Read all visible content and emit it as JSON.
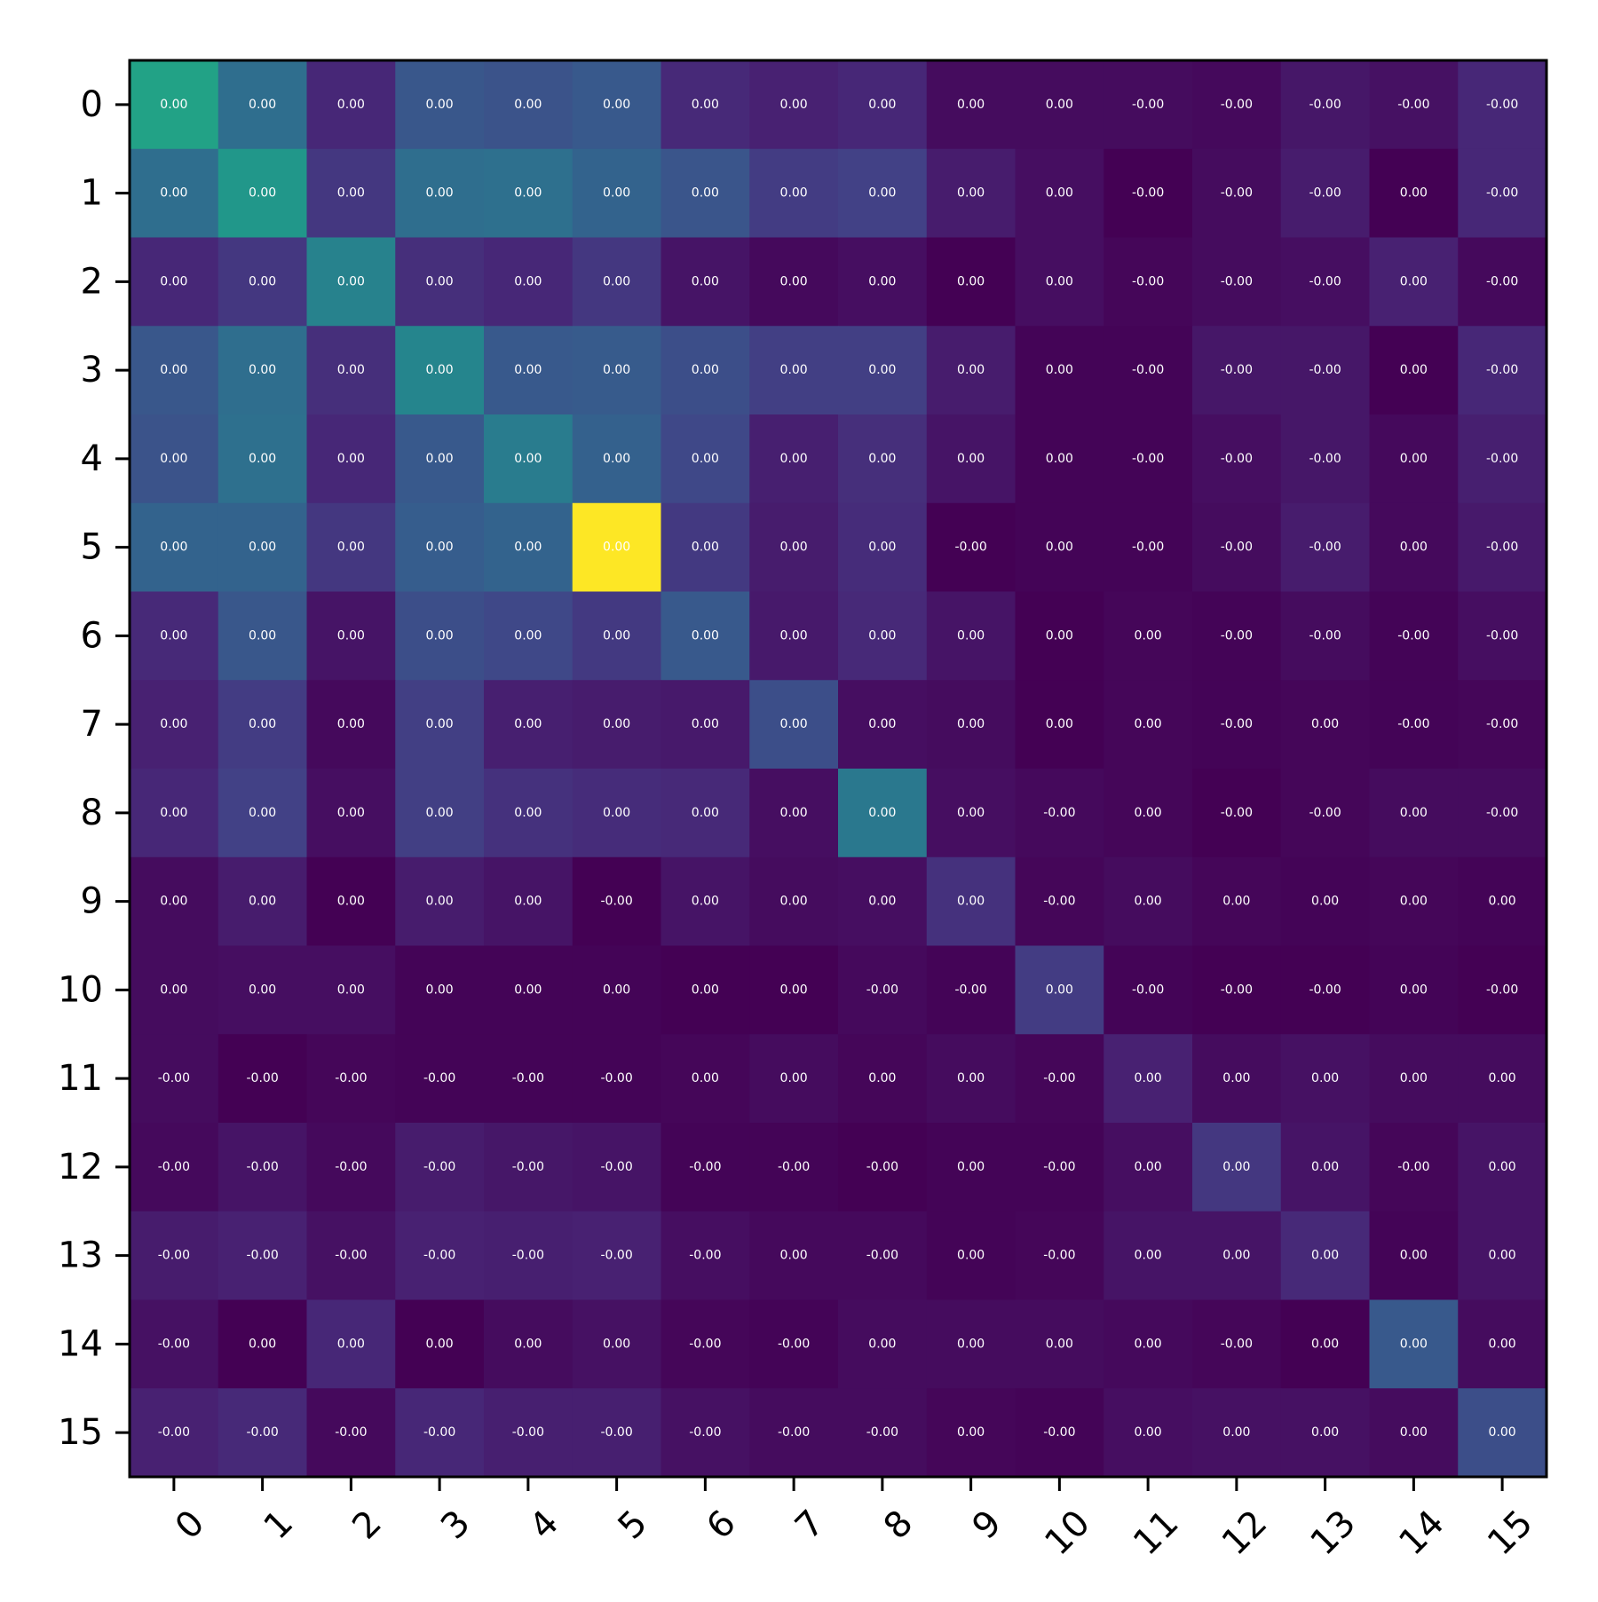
{
  "chart_data": {
    "type": "heatmap",
    "title": "",
    "xlabel": "",
    "ylabel": "",
    "colormap": "viridis",
    "grid": false,
    "x_tick_labels": [
      "0",
      "1",
      "2",
      "3",
      "4",
      "5",
      "6",
      "7",
      "8",
      "9",
      "10",
      "11",
      "12",
      "13",
      "14",
      "15"
    ],
    "y_tick_labels": [
      "0",
      "1",
      "2",
      "3",
      "4",
      "5",
      "6",
      "7",
      "8",
      "9",
      "10",
      "11",
      "12",
      "13",
      "14",
      "15"
    ],
    "color_values": [
      [
        0.72,
        0.45,
        0.14,
        0.34,
        0.32,
        0.35,
        0.15,
        0.12,
        0.14,
        0.04,
        0.04,
        0.04,
        0.03,
        0.08,
        0.06,
        0.14
      ],
      [
        0.45,
        0.66,
        0.2,
        0.45,
        0.46,
        0.4,
        0.33,
        0.22,
        0.24,
        0.1,
        0.05,
        0.0,
        0.04,
        0.1,
        0.0,
        0.14
      ],
      [
        0.14,
        0.2,
        0.55,
        0.17,
        0.14,
        0.2,
        0.07,
        0.03,
        0.05,
        0.0,
        0.05,
        0.02,
        0.04,
        0.05,
        0.12,
        0.03
      ],
      [
        0.34,
        0.45,
        0.17,
        0.57,
        0.35,
        0.36,
        0.3,
        0.23,
        0.23,
        0.1,
        0.01,
        0.01,
        0.08,
        0.08,
        0.0,
        0.14
      ],
      [
        0.32,
        0.46,
        0.14,
        0.35,
        0.52,
        0.39,
        0.27,
        0.11,
        0.17,
        0.07,
        0.01,
        0.01,
        0.05,
        0.08,
        0.03,
        0.11
      ],
      [
        0.4,
        0.4,
        0.2,
        0.37,
        0.4,
        1.0,
        0.21,
        0.1,
        0.16,
        0.0,
        0.01,
        0.01,
        0.04,
        0.1,
        0.03,
        0.09
      ],
      [
        0.15,
        0.34,
        0.07,
        0.3,
        0.27,
        0.21,
        0.35,
        0.09,
        0.15,
        0.07,
        0.0,
        0.02,
        0.01,
        0.04,
        0.01,
        0.05
      ],
      [
        0.12,
        0.22,
        0.03,
        0.23,
        0.11,
        0.1,
        0.09,
        0.3,
        0.05,
        0.04,
        0.0,
        0.02,
        0.01,
        0.02,
        0.01,
        0.02
      ],
      [
        0.14,
        0.24,
        0.05,
        0.23,
        0.18,
        0.16,
        0.15,
        0.05,
        0.5,
        0.05,
        0.03,
        0.02,
        0.0,
        0.02,
        0.04,
        0.04
      ],
      [
        0.04,
        0.1,
        0.0,
        0.1,
        0.07,
        0.0,
        0.07,
        0.04,
        0.05,
        0.18,
        0.02,
        0.04,
        0.02,
        0.01,
        0.02,
        0.01
      ],
      [
        0.04,
        0.05,
        0.05,
        0.01,
        0.01,
        0.01,
        0.0,
        0.0,
        0.03,
        0.01,
        0.22,
        0.01,
        0.0,
        0.0,
        0.01,
        0.0
      ],
      [
        0.04,
        0.0,
        0.02,
        0.01,
        0.01,
        0.01,
        0.02,
        0.04,
        0.02,
        0.04,
        0.02,
        0.12,
        0.04,
        0.06,
        0.04,
        0.04
      ],
      [
        0.03,
        0.07,
        0.03,
        0.1,
        0.08,
        0.07,
        0.01,
        0.01,
        0.0,
        0.01,
        0.01,
        0.05,
        0.2,
        0.07,
        0.02,
        0.07
      ],
      [
        0.1,
        0.12,
        0.06,
        0.12,
        0.11,
        0.12,
        0.05,
        0.03,
        0.03,
        0.01,
        0.02,
        0.07,
        0.07,
        0.15,
        0.01,
        0.07
      ],
      [
        0.06,
        0.0,
        0.14,
        0.0,
        0.04,
        0.06,
        0.02,
        0.01,
        0.04,
        0.04,
        0.04,
        0.03,
        0.02,
        0.0,
        0.35,
        0.04
      ],
      [
        0.12,
        0.15,
        0.03,
        0.14,
        0.11,
        0.11,
        0.06,
        0.04,
        0.04,
        0.02,
        0.01,
        0.05,
        0.06,
        0.06,
        0.04,
        0.3
      ]
    ],
    "cell_labels": [
      [
        "0.00",
        "0.00",
        "0.00",
        "0.00",
        "0.00",
        "0.00",
        "0.00",
        "0.00",
        "0.00",
        "0.00",
        "0.00",
        "-0.00",
        "-0.00",
        "-0.00",
        "-0.00",
        "-0.00"
      ],
      [
        "0.00",
        "0.00",
        "0.00",
        "0.00",
        "0.00",
        "0.00",
        "0.00",
        "0.00",
        "0.00",
        "0.00",
        "0.00",
        "-0.00",
        "-0.00",
        "-0.00",
        "0.00",
        "-0.00"
      ],
      [
        "0.00",
        "0.00",
        "0.00",
        "0.00",
        "0.00",
        "0.00",
        "0.00",
        "0.00",
        "0.00",
        "0.00",
        "0.00",
        "-0.00",
        "-0.00",
        "-0.00",
        "0.00",
        "-0.00"
      ],
      [
        "0.00",
        "0.00",
        "0.00",
        "0.00",
        "0.00",
        "0.00",
        "0.00",
        "0.00",
        "0.00",
        "0.00",
        "0.00",
        "-0.00",
        "-0.00",
        "-0.00",
        "0.00",
        "-0.00"
      ],
      [
        "0.00",
        "0.00",
        "0.00",
        "0.00",
        "0.00",
        "0.00",
        "0.00",
        "0.00",
        "0.00",
        "0.00",
        "0.00",
        "-0.00",
        "-0.00",
        "-0.00",
        "0.00",
        "-0.00"
      ],
      [
        "0.00",
        "0.00",
        "0.00",
        "0.00",
        "0.00",
        "0.00",
        "0.00",
        "0.00",
        "0.00",
        "-0.00",
        "0.00",
        "-0.00",
        "-0.00",
        "-0.00",
        "0.00",
        "-0.00"
      ],
      [
        "0.00",
        "0.00",
        "0.00",
        "0.00",
        "0.00",
        "0.00",
        "0.00",
        "0.00",
        "0.00",
        "0.00",
        "0.00",
        "0.00",
        "-0.00",
        "-0.00",
        "-0.00",
        "-0.00"
      ],
      [
        "0.00",
        "0.00",
        "0.00",
        "0.00",
        "0.00",
        "0.00",
        "0.00",
        "0.00",
        "0.00",
        "0.00",
        "0.00",
        "0.00",
        "-0.00",
        "0.00",
        "-0.00",
        "-0.00"
      ],
      [
        "0.00",
        "0.00",
        "0.00",
        "0.00",
        "0.00",
        "0.00",
        "0.00",
        "0.00",
        "0.00",
        "0.00",
        "-0.00",
        "0.00",
        "-0.00",
        "-0.00",
        "0.00",
        "-0.00"
      ],
      [
        "0.00",
        "0.00",
        "0.00",
        "0.00",
        "0.00",
        "-0.00",
        "0.00",
        "0.00",
        "0.00",
        "0.00",
        "-0.00",
        "0.00",
        "0.00",
        "0.00",
        "0.00",
        "0.00"
      ],
      [
        "0.00",
        "0.00",
        "0.00",
        "0.00",
        "0.00",
        "0.00",
        "0.00",
        "0.00",
        "-0.00",
        "-0.00",
        "0.00",
        "-0.00",
        "-0.00",
        "-0.00",
        "0.00",
        "-0.00"
      ],
      [
        "-0.00",
        "-0.00",
        "-0.00",
        "-0.00",
        "-0.00",
        "-0.00",
        "0.00",
        "0.00",
        "0.00",
        "0.00",
        "-0.00",
        "0.00",
        "0.00",
        "0.00",
        "0.00",
        "0.00"
      ],
      [
        "-0.00",
        "-0.00",
        "-0.00",
        "-0.00",
        "-0.00",
        "-0.00",
        "-0.00",
        "-0.00",
        "-0.00",
        "0.00",
        "-0.00",
        "0.00",
        "0.00",
        "0.00",
        "-0.00",
        "0.00"
      ],
      [
        "-0.00",
        "-0.00",
        "-0.00",
        "-0.00",
        "-0.00",
        "-0.00",
        "-0.00",
        "0.00",
        "-0.00",
        "0.00",
        "-0.00",
        "0.00",
        "0.00",
        "0.00",
        "0.00",
        "0.00"
      ],
      [
        "-0.00",
        "0.00",
        "0.00",
        "0.00",
        "0.00",
        "0.00",
        "-0.00",
        "-0.00",
        "0.00",
        "0.00",
        "0.00",
        "0.00",
        "-0.00",
        "0.00",
        "0.00",
        "0.00"
      ],
      [
        "-0.00",
        "-0.00",
        "-0.00",
        "-0.00",
        "-0.00",
        "-0.00",
        "-0.00",
        "-0.00",
        "-0.00",
        "0.00",
        "-0.00",
        "0.00",
        "0.00",
        "0.00",
        "0.00",
        "0.00"
      ]
    ]
  }
}
